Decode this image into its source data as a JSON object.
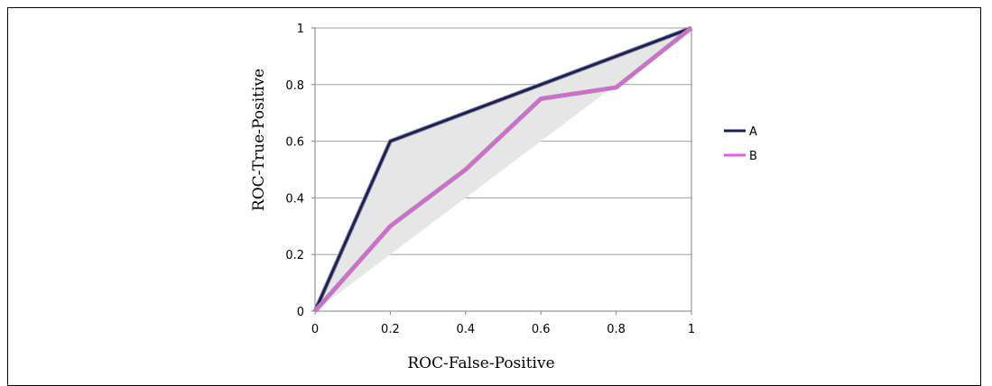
{
  "chart_data": {
    "type": "line",
    "xlabel": "ROC-False-Positive",
    "ylabel": "ROC-True-Positive",
    "xlim": [
      0,
      1
    ],
    "ylim": [
      0,
      1
    ],
    "x_ticks": [
      "0",
      "0.2",
      "0.4",
      "0.6",
      "0.8",
      "1"
    ],
    "y_ticks": [
      "0",
      "0.2",
      "0.4",
      "0.6",
      "0.8",
      "1"
    ],
    "grid": "horizontal",
    "legend_position": "right",
    "plot_background": "#e6e6e6",
    "series": [
      {
        "name": "A",
        "color": "#1c1f5e",
        "x": [
          0,
          0.2,
          0.6,
          1
        ],
        "y": [
          0,
          0.6,
          0.8,
          1
        ]
      },
      {
        "name": "B",
        "color": "#e060e0",
        "x": [
          0,
          0.2,
          0.4,
          0.6,
          0.8,
          1
        ],
        "y": [
          0,
          0.3,
          0.5,
          0.75,
          0.79,
          1
        ]
      }
    ]
  }
}
